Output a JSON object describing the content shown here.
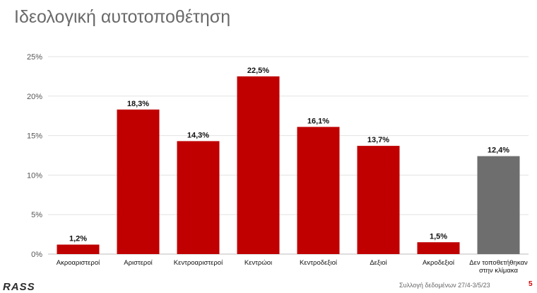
{
  "header": {
    "title": "Ιδεολογική αυτοτοποθέτηση"
  },
  "footer": {
    "source": "Συλλογή δεδομένων 27/4-3/5/23",
    "page": "5",
    "logo_text": "RASS"
  },
  "colors": {
    "accent": "#c00000",
    "neutral": "#6e6e6e"
  },
  "chart_data": {
    "type": "bar",
    "title": "",
    "xlabel": "",
    "ylabel": "",
    "ylim": [
      0,
      25
    ],
    "yticks": [
      0,
      5,
      10,
      15,
      20,
      25
    ],
    "ytick_labels": [
      "0%",
      "5%",
      "10%",
      "15%",
      "20%",
      "25%"
    ],
    "grid": true,
    "categories": [
      [
        "Ακροαριστεροί"
      ],
      [
        "Αριστεροί"
      ],
      [
        "Κεντροαριστεροί"
      ],
      [
        "Κεντρώοι"
      ],
      [
        "Κεντροδεξιοί"
      ],
      [
        "Δεξιοί"
      ],
      [
        "Ακροδεξιοί"
      ],
      [
        "Δεν τοποθετήθηκαν",
        "στην κλίμακα"
      ]
    ],
    "values": [
      1.2,
      18.3,
      14.3,
      22.5,
      16.1,
      13.7,
      1.5,
      12.4
    ],
    "value_labels": [
      "1,2%",
      "18,3%",
      "14,3%",
      "22,5%",
      "16,1%",
      "13,7%",
      "1,5%",
      "12,4%"
    ],
    "bar_colors": [
      "#c00000",
      "#c00000",
      "#c00000",
      "#c00000",
      "#c00000",
      "#c00000",
      "#c00000",
      "#6e6e6e"
    ]
  }
}
